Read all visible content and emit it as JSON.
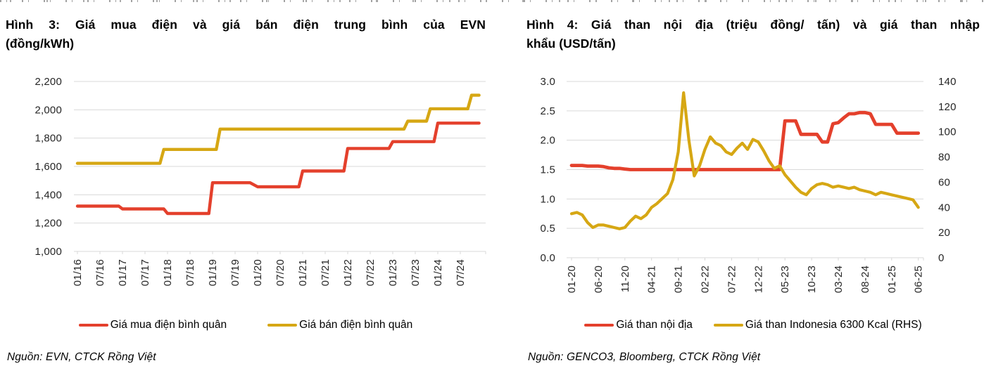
{
  "page": {
    "background": "#ffffff"
  },
  "chart_data": [
    {
      "type": "line",
      "title": "Hình 3: Giá mua điện và giá bán điện trung bình của EVN (đồng/kWh)",
      "title_lines": [
        "Hình 3: Giá mua điện và giá bán điện trung bình của EVN",
        "(đồng/kWh)"
      ],
      "source": "Nguồn: EVN, CTCK Rồng Việt",
      "grid": true,
      "grid_color": "#d9d9d9",
      "legend_position": "bottom",
      "x_unit": "months from 01/2016",
      "x_tick_values": [
        0,
        6,
        12,
        18,
        24,
        30,
        36,
        42,
        48,
        54,
        60,
        66,
        72,
        78,
        84,
        90,
        96,
        102
      ],
      "x_tick_labels": [
        "01/16",
        "07/16",
        "01/17",
        "07/17",
        "01/18",
        "07/18",
        "01/19",
        "07/19",
        "01/20",
        "07/20",
        "01/21",
        "07/21",
        "01/22",
        "07/22",
        "01/23",
        "07/23",
        "01/24",
        "07/24"
      ],
      "y_axis": {
        "range": [
          1000,
          2200
        ],
        "tick_values": [
          1000,
          1200,
          1400,
          1600,
          1800,
          2000,
          2200
        ],
        "tick_labels": [
          "1,000",
          "1,200",
          "1,400",
          "1,600",
          "1,800",
          "2,000",
          "2,200"
        ]
      },
      "series": [
        {
          "name": "Giá mua điện bình quân",
          "color": "#e4402c",
          "axis": "left",
          "points": [
            [
              0,
              1320
            ],
            [
              11,
              1320
            ],
            [
              12,
              1300
            ],
            [
              23,
              1300
            ],
            [
              24,
              1268
            ],
            [
              35,
              1268
            ],
            [
              36,
              1485
            ],
            [
              46,
              1485
            ],
            [
              48,
              1456
            ],
            [
              59,
              1456
            ],
            [
              60,
              1568
            ],
            [
              71,
              1568
            ],
            [
              72,
              1727
            ],
            [
              83,
              1727
            ],
            [
              84,
              1775
            ],
            [
              95,
              1775
            ],
            [
              96,
              1906
            ],
            [
              107,
              1906
            ]
          ]
        },
        {
          "name": "Giá bán điện bình quân",
          "color": "#d6a714",
          "axis": "left",
          "points": [
            [
              0,
              1622
            ],
            [
              22,
              1622
            ],
            [
              23,
              1720
            ],
            [
              37,
              1720
            ],
            [
              38,
              1864
            ],
            [
              87,
              1864
            ],
            [
              88,
              1920
            ],
            [
              93,
              1920
            ],
            [
              94,
              2007
            ],
            [
              104,
              2007
            ],
            [
              105,
              2103
            ],
            [
              107,
              2103
            ]
          ]
        }
      ]
    },
    {
      "type": "line",
      "title": "Hình 4: Giá than nội địa (triệu đồng/ tấn) và giá than nhập khẩu (USD/tấn)",
      "title_lines": [
        "Hình 4: Giá than nội địa (triệu đồng/ tấn) và giá than nhập",
        "khẩu (USD/tấn)"
      ],
      "source": "Nguồn: GENCO3, Bloomberg, CTCK Rồng Việt",
      "grid": true,
      "grid_color": "#d9d9d9",
      "legend_position": "bottom",
      "x_unit": "months from 01/2020",
      "x_tick_values": [
        0,
        5,
        10,
        15,
        20,
        25,
        30,
        35,
        40,
        45,
        50,
        55,
        60,
        65
      ],
      "x_tick_labels": [
        "01-20",
        "06-20",
        "11-20",
        "04-21",
        "09-21",
        "02-22",
        "07-22",
        "12-22",
        "05-23",
        "10-23",
        "03-24",
        "08-24",
        "01-25",
        "06-25"
      ],
      "y_axis": {
        "range": [
          0,
          3
        ],
        "tick_values": [
          0,
          0.5,
          1,
          1.5,
          2,
          2.5,
          3
        ],
        "tick_labels": [
          "0.0",
          "0.5",
          "1.0",
          "1.5",
          "2.0",
          "2.5",
          "3.0"
        ]
      },
      "y_axis_right": {
        "range": [
          0,
          140
        ],
        "tick_values": [
          0,
          20,
          40,
          60,
          80,
          100,
          120,
          140
        ],
        "tick_labels": [
          "0",
          "20",
          "40",
          "60",
          "80",
          "100",
          "120",
          "140"
        ]
      },
      "series": [
        {
          "name": "Giá than nội địa",
          "color": "#e4402c",
          "axis": "left",
          "values": [
            1.57,
            1.57,
            1.57,
            1.56,
            1.56,
            1.56,
            1.55,
            1.53,
            1.52,
            1.52,
            1.51,
            1.5,
            1.5,
            1.5,
            1.5,
            1.5,
            1.5,
            1.5,
            1.5,
            1.5,
            1.5,
            1.5,
            1.5,
            1.5,
            1.5,
            1.5,
            1.5,
            1.5,
            1.5,
            1.5,
            1.5,
            1.5,
            1.5,
            1.5,
            1.5,
            1.5,
            1.5,
            1.5,
            1.5,
            1.5,
            2.33,
            2.33,
            2.33,
            2.1,
            2.1,
            2.1,
            2.1,
            1.97,
            1.97,
            2.28,
            2.3,
            2.38,
            2.45,
            2.45,
            2.47,
            2.47,
            2.45,
            2.27,
            2.27,
            2.27,
            2.27,
            2.12,
            2.12,
            2.12,
            2.12,
            2.12
          ]
        },
        {
          "name": "Giá than Indonesia 6300 Kcal (RHS)",
          "color": "#d6a714",
          "axis": "right",
          "values": [
            35,
            36,
            34,
            28,
            24,
            26,
            26,
            25,
            24,
            23,
            24,
            29,
            33,
            31,
            34,
            40,
            43,
            47,
            51,
            62,
            84,
            131,
            93,
            65,
            73,
            86,
            96,
            91,
            89,
            84,
            82,
            87,
            91,
            86,
            94,
            92,
            85,
            77,
            71,
            73,
            66,
            61,
            56,
            52,
            50,
            55,
            58,
            59,
            58,
            56,
            57,
            56,
            55,
            56,
            54,
            53,
            52,
            50,
            52,
            51,
            50,
            49,
            48,
            47,
            46,
            40
          ]
        }
      ]
    }
  ]
}
